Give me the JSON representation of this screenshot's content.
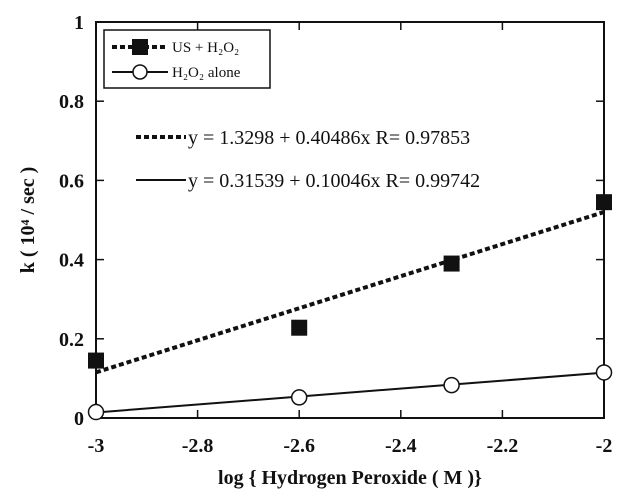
{
  "chart_data": {
    "type": "scatter",
    "xlabel": "log { Hydrogen Peroxide ( M )}",
    "ylabel": "k ( 10⁴ / sec )",
    "xlim": [
      -3,
      -2
    ],
    "ylim": [
      0,
      1
    ],
    "x_ticks": [
      -3,
      -2.8,
      -2.6,
      -2.4,
      -2.2,
      -2
    ],
    "x_tick_labels": [
      "-3",
      "-2.8",
      "-2.6",
      "-2.4",
      "-2.2",
      "-2"
    ],
    "y_ticks": [
      0,
      0.2,
      0.4,
      0.6,
      0.8,
      1
    ],
    "y_tick_labels": [
      "0",
      "0.2",
      "0.4",
      "0.6",
      "0.8",
      "1"
    ],
    "grid": false,
    "legend_position": "top-left",
    "series": [
      {
        "name": "US + H₂O₂",
        "marker": "filled-square",
        "line_style": "dashed",
        "color": "#111111",
        "x": [
          -3,
          -2.6,
          -2.3,
          -2
        ],
        "y": [
          0.145,
          0.228,
          0.39,
          0.545
        ],
        "fit": {
          "intercept": 1.3298,
          "slope": 0.40486
        },
        "equation": "y = 1.3298 + 0.40486x R= 0.97853"
      },
      {
        "name": "H₂O₂ alone",
        "marker": "open-circle",
        "line_style": "solid",
        "color": "#111111",
        "x": [
          -3,
          -2.6,
          -2.3,
          -2
        ],
        "y": [
          0.015,
          0.052,
          0.083,
          0.115
        ],
        "fit": {
          "intercept": 0.31539,
          "slope": 0.10046
        },
        "equation": "y = 0.31539 + 0.10046x R= 0.99742"
      }
    ]
  }
}
